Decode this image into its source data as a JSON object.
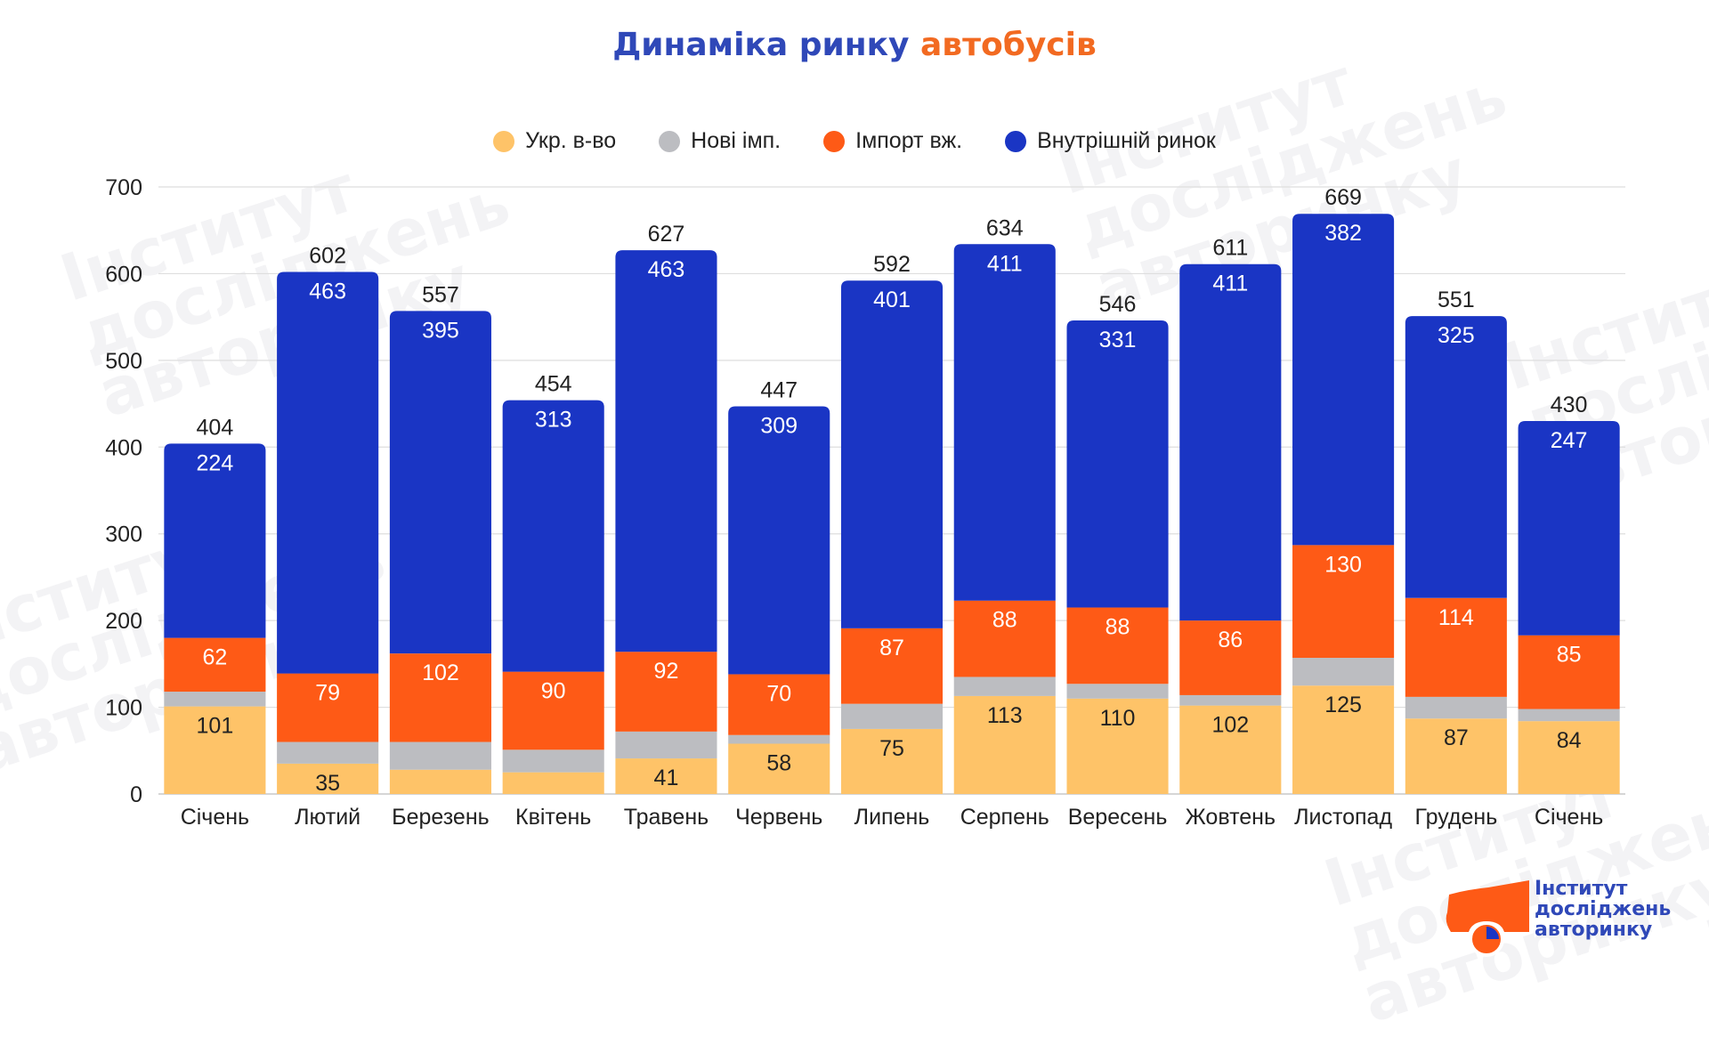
{
  "title": {
    "part1": "Динаміка ринку",
    "part2": "автобусів"
  },
  "colors": {
    "title_primary": "#2f48b8",
    "title_accent": "#f26a21",
    "ukr": "#fec368",
    "new_import": "#bcbdc1",
    "used_import": "#fe5a16",
    "domestic": "#1a35c4"
  },
  "logo": {
    "lines": [
      "Інститут",
      "досліджень",
      "авторинку"
    ]
  },
  "watermark_text": "Інститут\nдосліджень\nавторинку",
  "chart_data": {
    "type": "bar",
    "stacked": true,
    "title": "Динаміка ринку автобусів",
    "xlabel": "",
    "ylabel": "",
    "ylim": [
      0,
      700
    ],
    "yticks": [
      0,
      100,
      200,
      300,
      400,
      500,
      600,
      700
    ],
    "grid": true,
    "legend_position": "top",
    "categories": [
      "Січень",
      "Лютий",
      "Березень",
      "Квітень",
      "Травень",
      "Червень",
      "Липень",
      "Серпень",
      "Вересень",
      "Жовтень",
      "Листопад",
      "Грудень",
      "Січень"
    ],
    "series": [
      {
        "name": "Укр. в-во",
        "color": "#fec368",
        "values": [
          101,
          35,
          28,
          25,
          41,
          58,
          75,
          113,
          110,
          102,
          125,
          87,
          84
        ],
        "labels_shown": [
          true,
          true,
          false,
          false,
          true,
          true,
          true,
          true,
          true,
          true,
          true,
          true,
          true
        ]
      },
      {
        "name": "Нові імп.",
        "color": "#bcbdc1",
        "values": [
          17,
          25,
          32,
          26,
          31,
          10,
          29,
          22,
          17,
          12,
          32,
          25,
          14
        ],
        "labels_shown": [
          false,
          false,
          false,
          false,
          false,
          false,
          false,
          false,
          false,
          false,
          false,
          false,
          false
        ]
      },
      {
        "name": "Імпорт вж.",
        "color": "#fe5a16",
        "values": [
          62,
          79,
          102,
          90,
          92,
          70,
          87,
          88,
          88,
          86,
          130,
          114,
          85
        ],
        "labels_shown": [
          true,
          true,
          true,
          true,
          true,
          true,
          true,
          true,
          true,
          true,
          true,
          true,
          true
        ]
      },
      {
        "name": "Внутрішній ринок",
        "color": "#1a35c4",
        "values": [
          224,
          463,
          395,
          313,
          463,
          309,
          401,
          411,
          331,
          411,
          382,
          325,
          247
        ],
        "labels_shown": [
          true,
          true,
          true,
          true,
          true,
          true,
          true,
          true,
          true,
          true,
          true,
          true,
          true
        ]
      }
    ],
    "totals": [
      404,
      602,
      557,
      454,
      627,
      447,
      592,
      634,
      546,
      611,
      669,
      551,
      430
    ]
  }
}
